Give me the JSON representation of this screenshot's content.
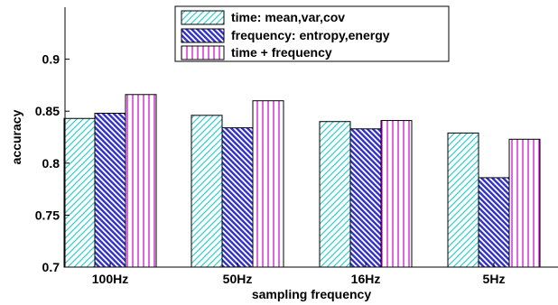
{
  "chart_data": {
    "type": "bar",
    "title": "",
    "xlabel": "sampling frequency",
    "ylabel": "accuracy",
    "ylim": [
      0.7,
      0.95
    ],
    "yticks": [
      0.7,
      0.75,
      0.8,
      0.85,
      0.9
    ],
    "ytick_labels": [
      "0.7",
      "0.75",
      "0.8",
      "0.85",
      "0.9"
    ],
    "categories": [
      "100Hz",
      "50Hz",
      "16Hz",
      "5Hz"
    ],
    "series": [
      {
        "name": "time: mean,var,cov",
        "values": [
          0.843,
          0.846,
          0.84,
          0.829
        ],
        "color": "#33cccc",
        "pattern": "diagonal-up"
      },
      {
        "name": "frequency: entropy,energy",
        "values": [
          0.848,
          0.834,
          0.833,
          0.786
        ],
        "color": "#3333cc",
        "pattern": "diagonal-down"
      },
      {
        "name": "time + frequency",
        "values": [
          0.866,
          0.86,
          0.841,
          0.823
        ],
        "color": "#cc00cc",
        "pattern": "vertical"
      }
    ],
    "grid": false,
    "legend_position": "top-center"
  }
}
